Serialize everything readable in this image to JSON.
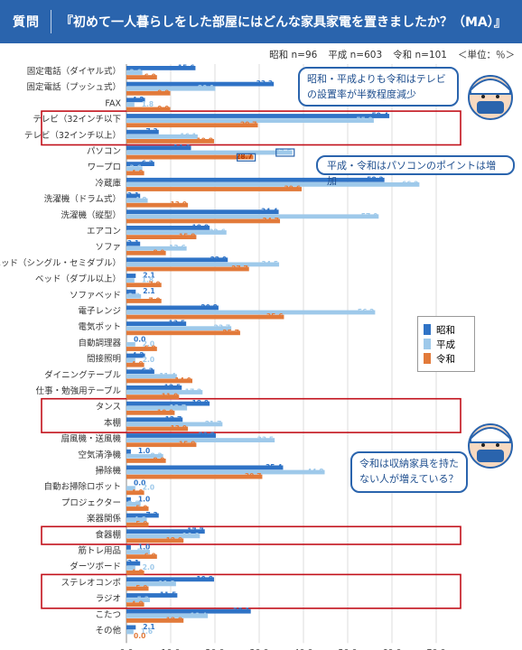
{
  "header": {
    "label": "質問",
    "question": "『初めて一人暮らしをした部屋にはどんな家具家電を置きましたか？（MA）』"
  },
  "subinfo": {
    "showa": "昭和 n=96",
    "heisei": "平成 n=603",
    "reiwa": "令和 n=101",
    "unit": "＜単位：％＞"
  },
  "callouts": [
    "昭和・平成よりも令和はテレビの設置率が半数程度減少",
    "平成・令和はパソコンのポイントは増加",
    "令和は収納家具を持たない人が増えている？"
  ],
  "colors": {
    "showa": "#2f73c6",
    "heisei": "#9ec9ea",
    "reiwa": "#e27a3a",
    "accent": "#c2101a",
    "header": "#2a64ad"
  },
  "chart_data": {
    "type": "bar",
    "orientation": "horizontal",
    "xlim": [
      0,
      70
    ],
    "xticks": [
      "0.0",
      "10.0",
      "20.0",
      "30.0",
      "40.0",
      "50.0",
      "60.0",
      "70.0"
    ],
    "legend_position": "right",
    "categories": [
      "固定電話（ダイヤル式）",
      "固定電話（プッシュ式）",
      "FAX",
      "テレビ（32インチ以下",
      "テレビ（32インチ以上）",
      "パソコン",
      "ワープロ",
      "冷蔵庫",
      "洗濯機（ドラム式）",
      "洗濯機（縦型）",
      "エアコン",
      "ソファ",
      "ベッド（シングル・セミダブル）",
      "ベッド（ダブル以上）",
      "ソファベッド",
      "電子レンジ",
      "電気ポット",
      "自動調理器",
      "間接照明",
      "ダイニングテーブル",
      "仕事・勉強用テーブル",
      "タンス",
      "本棚",
      "扇風機・送風機",
      "空気清浄機",
      "掃除機",
      "自動お掃除ロボット",
      "プロジェクター",
      "楽器関係",
      "食器棚",
      "筋トレ用品",
      "ダーツボード",
      "ステレオコンポ",
      "ラジオ",
      "こたつ",
      "その他"
    ],
    "series": [
      {
        "name": "昭和",
        "values": [
          15.6,
          33.3,
          4.2,
          59.4,
          7.3,
          14.6,
          6.3,
          58.3,
          3.1,
          34.4,
          18.8,
          3.1,
          22.9,
          2.1,
          2.1,
          20.8,
          13.5,
          0.0,
          4.2,
          6.3,
          12.5,
          18.8,
          12.7,
          20.2,
          1.0,
          35.4,
          0.0,
          1.0,
          7.3,
          17.7,
          1.0,
          3.1,
          19.8,
          11.5,
          28.1,
          2.1
        ]
      },
      {
        "name": "平成",
        "values": [
          3.6,
          20.1,
          1.8,
          55.9,
          16.1,
          37.5,
          3.6,
          66.2,
          4.8,
          57.0,
          22.6,
          13.6,
          34.5,
          1.8,
          3.3,
          56.2,
          23.7,
          2.0,
          2.0,
          11.4,
          17.2,
          13.7,
          21.7,
          33.5,
          8.3,
          44.8,
          2.0,
          3.2,
          4.6,
          16.6,
          5.3,
          2.0,
          11.2,
          5.3,
          18.4,
          1.6
        ]
      },
      {
        "name": "令和",
        "values": [
          6.9,
          9.9,
          9.9,
          29.7,
          19.8,
          28.7,
          4.0,
          39.6,
          13.9,
          34.7,
          15.8,
          8.9,
          27.7,
          7.9,
          7.9,
          35.6,
          25.7,
          6.9,
          4.0,
          14.9,
          11.9,
          10.9,
          13.9,
          15.8,
          8.9,
          30.7,
          4.0,
          5.0,
          5.0,
          12.9,
          6.9,
          4.0,
          5.0,
          4.0,
          12.9,
          0.0
        ]
      }
    ],
    "highlight_boxes": [
      [
        3,
        4
      ],
      [
        21,
        22
      ],
      [
        29,
        29
      ],
      [
        32,
        33
      ]
    ],
    "highlight_labels": [
      5
    ]
  }
}
